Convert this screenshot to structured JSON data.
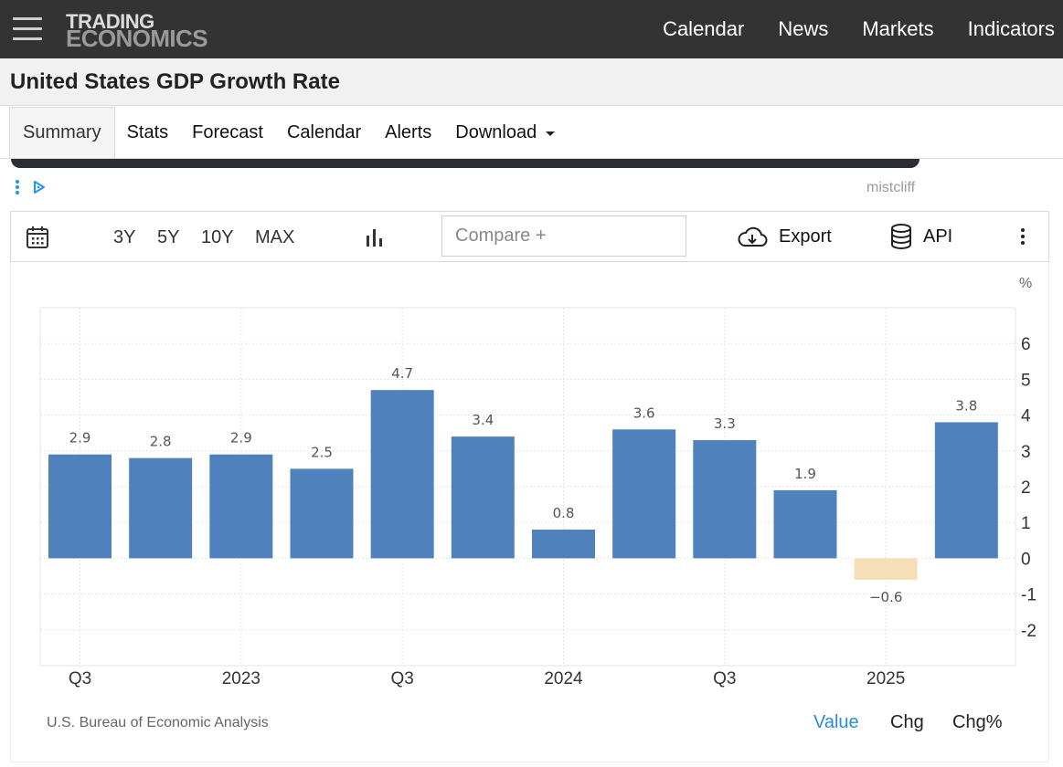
{
  "header": {
    "logo_line1": "TRADING",
    "logo_line2": "ECONOMICS",
    "nav": [
      "Calendar",
      "News",
      "Markets",
      "Indicators"
    ]
  },
  "page": {
    "title": "United States GDP Growth Rate"
  },
  "tabs": [
    "Summary",
    "Stats",
    "Forecast",
    "Calendar",
    "Alerts",
    "Download"
  ],
  "ad": {
    "label": "mistcliff"
  },
  "toolbar": {
    "ranges": [
      "3Y",
      "5Y",
      "10Y",
      "MAX"
    ],
    "compare_placeholder": "Compare +",
    "export_label": "Export",
    "api_label": "API"
  },
  "chart_data": {
    "type": "bar",
    "unit_label": "%",
    "values": [
      2.9,
      2.8,
      2.9,
      2.5,
      4.7,
      3.4,
      0.8,
      3.6,
      3.3,
      1.9,
      -0.6,
      3.8
    ],
    "data_labels": [
      "2.9",
      "2.8",
      "2.9",
      "2.5",
      "4.7",
      "3.4",
      "0.8",
      "3.6",
      "3.3",
      "1.9",
      "−0.6",
      "3.8"
    ],
    "x_tick_labels": [
      "Q3",
      "2023",
      "Q3",
      "2024",
      "Q3",
      "2025"
    ],
    "y_ticks": [
      6,
      5,
      4,
      3,
      2,
      1,
      0,
      -1,
      -2
    ],
    "y_tick_labels": [
      "6",
      "5",
      "4",
      "3",
      "2",
      "1",
      "0",
      "-1",
      "-2"
    ],
    "ylim": [
      -3,
      7
    ],
    "y_axis_side": "right",
    "grid": true,
    "colors": {
      "positive": "#4f81bd",
      "negative": "#f6dfb6"
    }
  },
  "footer": {
    "source": "U.S. Bureau of Economic Analysis",
    "value_label": "Value",
    "chg_label": "Chg",
    "chgpct_label": "Chg%",
    "active_color": "#2a8dd4"
  }
}
